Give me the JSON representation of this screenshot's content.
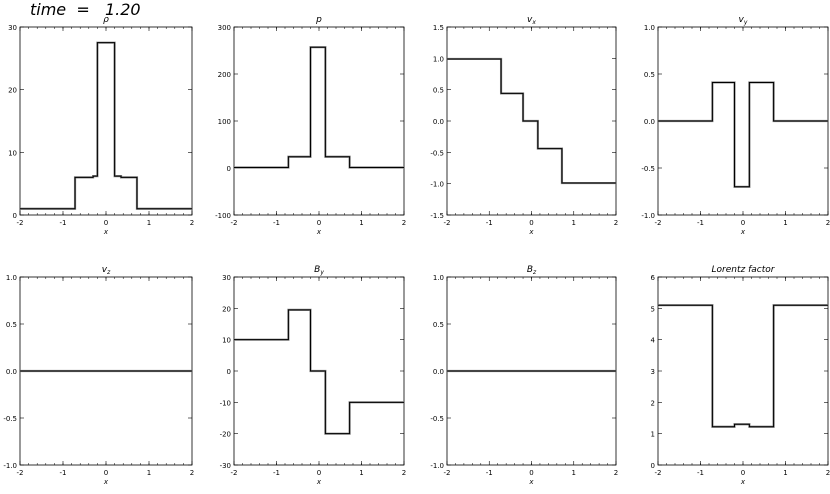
{
  "time_label": "time  =   1.20",
  "chart_data": [
    {
      "type": "line",
      "title": "ρ",
      "xlabel": "x",
      "xlim": [
        -2,
        2
      ],
      "ylim": [
        0,
        30
      ],
      "xticks": [
        "-2",
        "-1",
        "0",
        "1",
        "2"
      ],
      "yticks": [
        "0",
        "10",
        "20",
        "30"
      ],
      "series": [
        {
          "x": [
            -2,
            -0.72,
            -0.72,
            -0.3,
            -0.3,
            -0.2,
            -0.2,
            0.2,
            0.2,
            0.35,
            0.35,
            0.72,
            0.72,
            2
          ],
          "y": [
            1,
            1,
            6,
            6,
            6.2,
            6.2,
            27.5,
            27.5,
            6.2,
            6.2,
            6,
            6,
            1,
            1
          ]
        }
      ]
    },
    {
      "type": "line",
      "title": "p",
      "xlabel": "x",
      "xlim": [
        -2,
        2
      ],
      "ylim": [
        -100,
        300
      ],
      "xticks": [
        "-2",
        "-1",
        "0",
        "1",
        "2"
      ],
      "yticks": [
        "-100",
        "0",
        "100",
        "200",
        "300"
      ],
      "series": [
        {
          "x": [
            -2,
            -0.72,
            -0.72,
            -0.2,
            -0.2,
            0.15,
            0.15,
            0.72,
            0.72,
            2
          ],
          "y": [
            1,
            1,
            24,
            24,
            257,
            257,
            24,
            24,
            1,
            1
          ]
        }
      ]
    },
    {
      "type": "line",
      "title": "vx",
      "xlabel": "x",
      "xlim": [
        -2,
        2
      ],
      "ylim": [
        -1.5,
        1.5
      ],
      "xticks": [
        "-2",
        "-1",
        "0",
        "1",
        "2"
      ],
      "yticks": [
        "-1.5",
        "-1.0",
        "-0.5",
        "0.0",
        "0.5",
        "1.0",
        "1.5"
      ],
      "series": [
        {
          "x": [
            -2,
            -0.72,
            -0.72,
            -0.2,
            -0.2,
            0.15,
            0.15,
            0.72,
            0.72,
            2
          ],
          "y": [
            0.99,
            0.99,
            0.44,
            0.44,
            0,
            0,
            -0.44,
            -0.44,
            -0.99,
            -0.99
          ]
        }
      ]
    },
    {
      "type": "line",
      "title": "vy",
      "xlabel": "x",
      "xlim": [
        -2,
        2
      ],
      "ylim": [
        -1.0,
        1.0
      ],
      "xticks": [
        "-2",
        "-1",
        "0",
        "1",
        "2"
      ],
      "yticks": [
        "-1.0",
        "-0.5",
        "0.0",
        "0.5",
        "1.0"
      ],
      "series": [
        {
          "x": [
            -2,
            -0.72,
            -0.72,
            -0.2,
            -0.2,
            0.15,
            0.15,
            0.72,
            0.72,
            2
          ],
          "y": [
            0,
            0,
            0.41,
            0.41,
            -0.7,
            -0.7,
            0.41,
            0.41,
            0,
            0
          ]
        }
      ]
    },
    {
      "type": "line",
      "title": "vz",
      "xlabel": "x",
      "xlim": [
        -2,
        2
      ],
      "ylim": [
        -1.0,
        1.0
      ],
      "xticks": [
        "-2",
        "-1",
        "0",
        "1",
        "2"
      ],
      "yticks": [
        "-1.0",
        "-0.5",
        "0.0",
        "0.5",
        "1.0"
      ],
      "series": [
        {
          "x": [
            -2,
            2
          ],
          "y": [
            0,
            0
          ]
        }
      ]
    },
    {
      "type": "line",
      "title": "By",
      "xlabel": "x",
      "xlim": [
        -2,
        2
      ],
      "ylim": [
        -30,
        30
      ],
      "xticks": [
        "-2",
        "-1",
        "0",
        "1",
        "2"
      ],
      "yticks": [
        "-30",
        "-20",
        "-10",
        "0",
        "10",
        "20",
        "30"
      ],
      "series": [
        {
          "x": [
            -2,
            -0.72,
            -0.72,
            -0.2,
            -0.2,
            0.15,
            0.15,
            0.72,
            0.72,
            2
          ],
          "y": [
            10,
            10,
            19.5,
            19.5,
            0,
            0,
            -20,
            -20,
            -10,
            -10
          ]
        }
      ]
    },
    {
      "type": "line",
      "title": "Bz",
      "xlabel": "x",
      "xlim": [
        -2,
        2
      ],
      "ylim": [
        -1.0,
        1.0
      ],
      "xticks": [
        "-2",
        "-1",
        "0",
        "1",
        "2"
      ],
      "yticks": [
        "-1.0",
        "-0.5",
        "0.0",
        "0.5",
        "1.0"
      ],
      "series": [
        {
          "x": [
            -2,
            2
          ],
          "y": [
            0,
            0
          ]
        }
      ]
    },
    {
      "type": "line",
      "title": "Lorentz factor",
      "xlabel": "x",
      "xlim": [
        -2,
        2
      ],
      "ylim": [
        0,
        6
      ],
      "xticks": [
        "-2",
        "-1",
        "0",
        "1",
        "2"
      ],
      "yticks": [
        "0",
        "1",
        "2",
        "3",
        "4",
        "5",
        "6"
      ],
      "series": [
        {
          "x": [
            -2,
            -0.72,
            -0.72,
            -0.2,
            -0.2,
            0.15,
            0.15,
            0.72,
            0.72,
            2
          ],
          "y": [
            5.1,
            5.1,
            1.22,
            1.22,
            1.3,
            1.3,
            1.22,
            1.22,
            5.1,
            5.1
          ]
        }
      ]
    }
  ]
}
